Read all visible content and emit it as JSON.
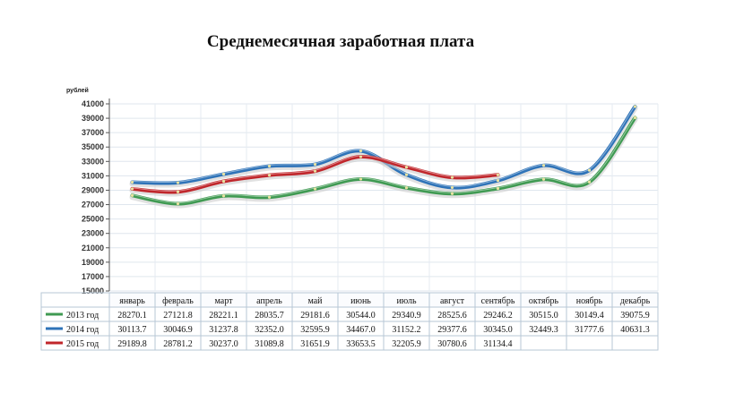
{
  "chart_data": {
    "type": "line",
    "title": "Среднемесячная заработная плата",
    "ylabel": "рублей",
    "ylim": [
      15000,
      41000
    ],
    "yticks": [
      15000,
      17000,
      19000,
      21000,
      23000,
      25000,
      27000,
      29000,
      31000,
      33000,
      35000,
      37000,
      39000,
      41000
    ],
    "categories": [
      "январь",
      "февраль",
      "март",
      "апрель",
      "май",
      "июнь",
      "июль",
      "август",
      "сентябрь",
      "октябрь",
      "ноябрь",
      "декабрь"
    ],
    "grid": true,
    "legend": "table-below",
    "series": [
      {
        "name": "2013 год",
        "color": "#3f9a52",
        "values": [
          28270.1,
          27121.8,
          28221.1,
          28035.7,
          29181.6,
          30544.0,
          29340.9,
          28525.6,
          29246.2,
          30515.0,
          30149.4,
          39075.9
        ],
        "labels": [
          "28270.1",
          "27121.8",
          "28221.1",
          "28035.7",
          "29181.6",
          "30544.0",
          "29340.9",
          "28525.6",
          "29246.2",
          "30515.0",
          "30149.4",
          "39075.9"
        ]
      },
      {
        "name": "2014 год",
        "color": "#2e73b8",
        "values": [
          30113.7,
          30046.9,
          31237.8,
          32352.0,
          32595.9,
          34467.0,
          31152.2,
          29377.6,
          30345.0,
          32449.3,
          31777.6,
          40631.3
        ],
        "labels": [
          "30113.7",
          "30046.9",
          "31237.8",
          "32352.0",
          "32595.9",
          "34467.0",
          "31152.2",
          "29377.6",
          "30345.0",
          "32449.3",
          "31777.6",
          "40631.3"
        ]
      },
      {
        "name": "2015 год",
        "color": "#c0262b",
        "values": [
          29189.8,
          28781.2,
          30237.0,
          31089.8,
          31651.9,
          33653.5,
          32205.9,
          30780.6,
          31134.4,
          null,
          null,
          null
        ],
        "labels": [
          "29189.8",
          "28781.2",
          "30237.0",
          "31089.8",
          "31651.9",
          "33653.5",
          "32205.9",
          "30780.6",
          "31134.4",
          "",
          "",
          ""
        ]
      }
    ]
  }
}
